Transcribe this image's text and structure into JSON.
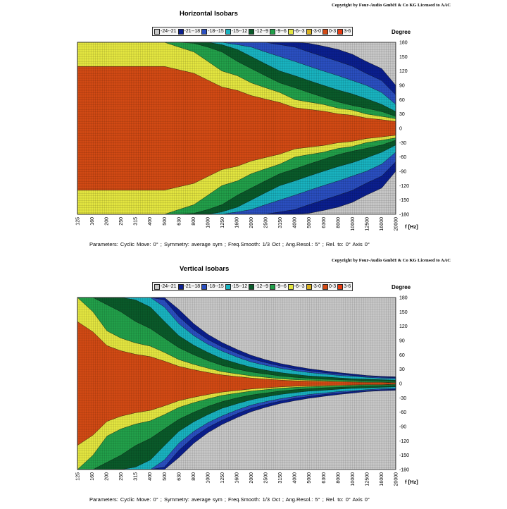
{
  "chart_data": [
    {
      "type": "heatmap",
      "copyright": "Copyright by Four-Audio GmbH & Co KG   Licensed to AAC",
      "title": "Horizontal Isobars",
      "xlabel": "f [Hz]",
      "ylabel": "Degree",
      "x_scale": "log",
      "x_ticks": [
        "125",
        "160",
        "200",
        "250",
        "315",
        "400",
        "500",
        "630",
        "800",
        "1000",
        "1250",
        "1600",
        "2000",
        "2500",
        "3150",
        "4000",
        "5000",
        "6300",
        "8000",
        "10000",
        "12500",
        "16000",
        "20000"
      ],
      "y_ticks": [
        180,
        150,
        120,
        90,
        60,
        30,
        0,
        -30,
        -60,
        -90,
        -120,
        -150,
        -180
      ],
      "ylim": [
        -180,
        180
      ],
      "legend": [
        "-24--21",
        "-21--18",
        "-18--15",
        "-15--12",
        "-12--9",
        "-9--6",
        "-6--3",
        "-3-0",
        "0-3",
        "3-6"
      ],
      "legend_colors": [
        "#c8c8c8",
        "#0b1f8f",
        "#2a4fc0",
        "#19b3c0",
        "#0a5a2a",
        "#22a04a",
        "#e4e640",
        "#d8b020",
        "#d24a14",
        "#e83a10"
      ],
      "contours_deg": {
        "freq": [
          125,
          250,
          400,
          500,
          630,
          800,
          1000,
          1250,
          1600,
          2000,
          2500,
          3150,
          4000,
          5000,
          6300,
          8000,
          10000,
          12500,
          16000,
          20000
        ],
        "-3": [
          180,
          180,
          180,
          180,
          170,
          160,
          140,
          120,
          110,
          95,
          85,
          75,
          60,
          55,
          50,
          42,
          38,
          30,
          25,
          20
        ],
        "-6": [
          180,
          180,
          180,
          180,
          180,
          178,
          170,
          160,
          140,
          125,
          110,
          95,
          85,
          75,
          65,
          55,
          48,
          42,
          35,
          25
        ],
        "-9": [
          180,
          180,
          180,
          180,
          180,
          180,
          180,
          175,
          165,
          150,
          135,
          120,
          110,
          100,
          90,
          80,
          72,
          62,
          50,
          35
        ],
        "-12": [
          180,
          180,
          180,
          180,
          180,
          180,
          180,
          180,
          175,
          170,
          160,
          150,
          140,
          130,
          120,
          110,
          100,
          90,
          75,
          50
        ],
        "-15": [
          180,
          180,
          180,
          180,
          180,
          180,
          180,
          180,
          180,
          180,
          180,
          175,
          170,
          160,
          150,
          140,
          130,
          115,
          100,
          70
        ],
        "-18": [
          180,
          180,
          180,
          180,
          180,
          180,
          180,
          180,
          180,
          180,
          180,
          180,
          180,
          178,
          172,
          165,
          155,
          140,
          125,
          90
        ]
      },
      "parameters": "Parameters:   Cyclic Move:  0°   ;   Symmetry: average sym   ;   Freq.Smooth: 1/3  Oct   ;   Ang.Resol.:  5°   ;   Rel. to: 0° Axis    0°"
    },
    {
      "type": "heatmap",
      "copyright": "Copyright by Four-Audio GmbH & Co KG   Licensed to AAC",
      "title": "Vertical Isobars",
      "xlabel": "f [Hz]",
      "ylabel": "Degree",
      "x_scale": "log",
      "x_ticks": [
        "125",
        "160",
        "200",
        "250",
        "315",
        "400",
        "500",
        "630",
        "800",
        "1000",
        "1250",
        "1600",
        "2000",
        "2500",
        "3150",
        "4000",
        "5000",
        "6300",
        "8000",
        "10000",
        "12500",
        "16000",
        "20000"
      ],
      "y_ticks": [
        180,
        150,
        120,
        90,
        60,
        30,
        0,
        -30,
        -60,
        -90,
        -120,
        -150,
        -180
      ],
      "ylim": [
        -180,
        180
      ],
      "legend": [
        "-24--21",
        "-21--18",
        "-18--15",
        "-15--12",
        "-12--9",
        "-9--6",
        "-6--3",
        "-3-0",
        "0-3",
        "3-6"
      ],
      "legend_colors": [
        "#c8c8c8",
        "#0b1f8f",
        "#2a4fc0",
        "#19b3c0",
        "#0a5a2a",
        "#22a04a",
        "#e4e640",
        "#d8b020",
        "#d24a14",
        "#e83a10"
      ],
      "contours_deg": {
        "freq": [
          125,
          160,
          200,
          250,
          315,
          400,
          500,
          630,
          800,
          1000,
          1250,
          1600,
          2000,
          2500,
          3150,
          4000,
          5000,
          6300,
          8000,
          10000,
          12500,
          16000,
          20000
        ],
        "-3": [
          180,
          150,
          110,
          95,
          85,
          78,
          65,
          50,
          40,
          32,
          25,
          20,
          16,
          13,
          10,
          8,
          7,
          6,
          5,
          4,
          3,
          3,
          2
        ],
        "-6": [
          180,
          180,
          165,
          150,
          130,
          115,
          95,
          75,
          60,
          48,
          38,
          30,
          24,
          20,
          16,
          13,
          11,
          9,
          8,
          7,
          6,
          5,
          4
        ],
        "-9": [
          180,
          180,
          180,
          180,
          175,
          160,
          130,
          100,
          80,
          65,
          52,
          42,
          34,
          28,
          23,
          19,
          16,
          14,
          12,
          10,
          9,
          8,
          7
        ],
        "-12": [
          180,
          180,
          180,
          180,
          180,
          180,
          160,
          125,
          100,
          82,
          68,
          55,
          45,
          38,
          32,
          27,
          23,
          20,
          17,
          15,
          13,
          11,
          10
        ],
        "-15": [
          180,
          180,
          180,
          180,
          180,
          180,
          175,
          140,
          112,
          92,
          77,
          63,
          52,
          44,
          37,
          31,
          27,
          23,
          20,
          17,
          15,
          13,
          12
        ],
        "-18": [
          180,
          180,
          180,
          180,
          180,
          180,
          180,
          155,
          125,
          103,
          86,
          71,
          59,
          50,
          42,
          36,
          31,
          27,
          23,
          20,
          17,
          15,
          14
        ]
      },
      "parameters": "Parameters:   Cyclic Move:  0°   ;   Symmetry: average sym   ;   Freq.Smooth: 1/3  Oct   ;   Ang.Resol.:  5°   ;   Rel. to: 0° Axis    0°"
    }
  ]
}
